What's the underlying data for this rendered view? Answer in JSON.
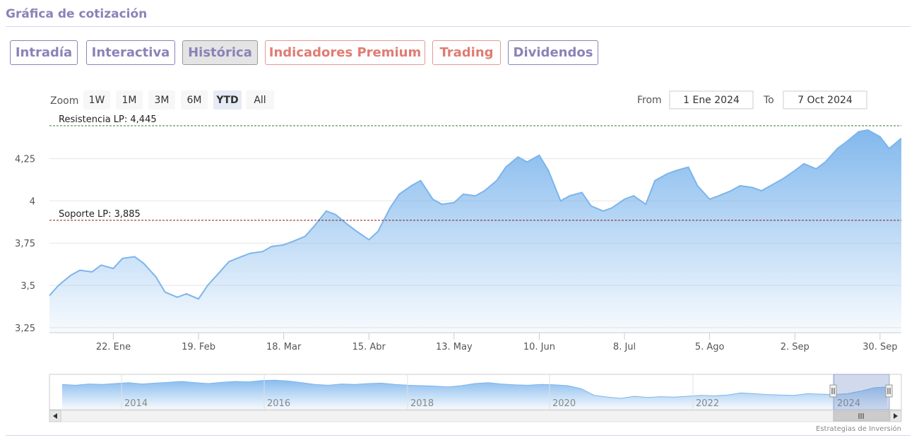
{
  "page": {
    "title": "Gráfica de cotización",
    "credits": "Estrategias de Inversión"
  },
  "tabs": [
    {
      "label": "Intradía",
      "active": false,
      "premium": false
    },
    {
      "label": "Interactiva",
      "active": false,
      "premium": false
    },
    {
      "label": "Histórica",
      "active": true,
      "premium": false
    },
    {
      "label": "Indicadores Premium",
      "active": false,
      "premium": true
    },
    {
      "label": "Trading",
      "active": false,
      "premium": true
    },
    {
      "label": "Dividendos",
      "active": false,
      "premium": false
    }
  ],
  "range_selector": {
    "zoom_label": "Zoom",
    "buttons": [
      "1W",
      "1M",
      "3M",
      "6M",
      "YTD",
      "All"
    ],
    "selected": "YTD",
    "from_label": "From",
    "from_value": "1 Ene 2024",
    "to_label": "To",
    "to_value": "7 Oct 2024"
  },
  "colors": {
    "accent": "#8a83b8",
    "premium": "#e07c72",
    "series": "#7cb5ec",
    "resistance": "#2e7d32",
    "support": "#8b1a1a"
  },
  "chart_data": {
    "type": "area",
    "title": "",
    "xlabel": "",
    "ylabel": "",
    "ylim": [
      3.22,
      4.47
    ],
    "xlim": [
      "2024-01-01",
      "2024-10-07"
    ],
    "y_ticks": [
      3.25,
      3.5,
      3.75,
      4,
      4.25
    ],
    "y_tick_labels": [
      "3,25",
      "3,5",
      "3,75",
      "4",
      "4,25"
    ],
    "x_ticks": [
      "2024-01-22",
      "2024-02-19",
      "2024-03-18",
      "2024-04-15",
      "2024-05-13",
      "2024-06-10",
      "2024-07-08",
      "2024-08-05",
      "2024-09-02",
      "2024-09-30"
    ],
    "x_tick_labels": [
      "22. Ene",
      "19. Feb",
      "18. Mar",
      "15. Abr",
      "13. May",
      "10. Jun",
      "8. Jul",
      "5. Ago",
      "2. Sep",
      "30. Sep"
    ],
    "grid": true,
    "legend": "none",
    "series": [
      {
        "name": "",
        "x": [
          "2024-01-01",
          "2024-01-04",
          "2024-01-08",
          "2024-01-11",
          "2024-01-15",
          "2024-01-18",
          "2024-01-22",
          "2024-01-25",
          "2024-01-29",
          "2024-02-01",
          "2024-02-05",
          "2024-02-08",
          "2024-02-12",
          "2024-02-15",
          "2024-02-19",
          "2024-02-22",
          "2024-02-26",
          "2024-02-29",
          "2024-03-04",
          "2024-03-07",
          "2024-03-11",
          "2024-03-14",
          "2024-03-18",
          "2024-03-21",
          "2024-03-25",
          "2024-03-28",
          "2024-04-01",
          "2024-04-04",
          "2024-04-08",
          "2024-04-11",
          "2024-04-15",
          "2024-04-18",
          "2024-04-22",
          "2024-04-25",
          "2024-04-29",
          "2024-05-02",
          "2024-05-06",
          "2024-05-09",
          "2024-05-13",
          "2024-05-16",
          "2024-05-20",
          "2024-05-23",
          "2024-05-27",
          "2024-05-30",
          "2024-06-03",
          "2024-06-06",
          "2024-06-10",
          "2024-06-13",
          "2024-06-17",
          "2024-06-20",
          "2024-06-24",
          "2024-06-27",
          "2024-07-01",
          "2024-07-04",
          "2024-07-08",
          "2024-07-11",
          "2024-07-15",
          "2024-07-18",
          "2024-07-22",
          "2024-07-25",
          "2024-07-29",
          "2024-08-01",
          "2024-08-05",
          "2024-08-08",
          "2024-08-12",
          "2024-08-15",
          "2024-08-19",
          "2024-08-22",
          "2024-08-26",
          "2024-08-29",
          "2024-09-02",
          "2024-09-05",
          "2024-09-09",
          "2024-09-12",
          "2024-09-16",
          "2024-09-19",
          "2024-09-23",
          "2024-09-26",
          "2024-09-30",
          "2024-10-03",
          "2024-10-07"
        ],
        "values": [
          3.44,
          3.5,
          3.56,
          3.59,
          3.58,
          3.62,
          3.6,
          3.66,
          3.67,
          3.63,
          3.55,
          3.46,
          3.43,
          3.45,
          3.42,
          3.5,
          3.58,
          3.64,
          3.67,
          3.69,
          3.7,
          3.73,
          3.74,
          3.76,
          3.79,
          3.85,
          3.94,
          3.92,
          3.86,
          3.82,
          3.77,
          3.82,
          3.96,
          4.04,
          4.09,
          4.12,
          4.01,
          3.98,
          3.99,
          4.04,
          4.03,
          4.06,
          4.12,
          4.2,
          4.26,
          4.23,
          4.27,
          4.18,
          4.0,
          4.03,
          4.05,
          3.97,
          3.94,
          3.96,
          4.01,
          4.03,
          3.98,
          4.12,
          4.16,
          4.18,
          4.2,
          4.09,
          4.01,
          4.03,
          4.06,
          4.09,
          4.08,
          4.06,
          4.1,
          4.13,
          4.18,
          4.22,
          4.19,
          4.23,
          4.31,
          4.35,
          4.41,
          4.42,
          4.38,
          4.31,
          4.37
        ]
      }
    ],
    "annotations": [
      {
        "label": "Resistencia LP: 4,445",
        "y": 4.445
      },
      {
        "label": "Soporte LP: 3,885",
        "y": 3.885
      }
    ],
    "navigator": {
      "year_labels": [
        "2014",
        "2016",
        "2018",
        "2020",
        "2022",
        "2024"
      ],
      "values": [
        3.88,
        3.86,
        3.89,
        3.88,
        3.9,
        3.92,
        3.89,
        3.91,
        3.93,
        3.95,
        3.92,
        3.9,
        3.93,
        3.95,
        3.94,
        3.97,
        3.98,
        3.96,
        3.92,
        3.88,
        3.86,
        3.89,
        3.88,
        3.9,
        3.91,
        3.88,
        3.86,
        3.85,
        3.84,
        3.82,
        3.85,
        3.9,
        3.92,
        3.89,
        3.87,
        3.86,
        3.88,
        3.87,
        3.85,
        3.78,
        3.62,
        3.58,
        3.55,
        3.6,
        3.57,
        3.59,
        3.58,
        3.6,
        3.62,
        3.61,
        3.63,
        3.68,
        3.66,
        3.64,
        3.63,
        3.62,
        3.66,
        3.65,
        3.64,
        3.66,
        3.72,
        3.8,
        3.82
      ]
    }
  }
}
